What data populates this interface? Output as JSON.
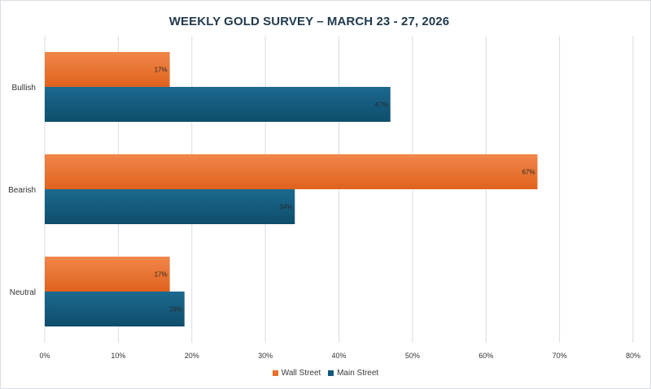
{
  "chart_data": {
    "type": "bar",
    "orientation": "horizontal",
    "title": "WEEKLY GOLD SURVEY – MARCH 23 - 27, 2026",
    "categories": [
      "Bullish",
      "Bearish",
      "Neutral"
    ],
    "series": [
      {
        "name": "Wall Street",
        "color": "#e8702a",
        "values": [
          17,
          67,
          17
        ],
        "labels": [
          "17%",
          "67%",
          "17%"
        ]
      },
      {
        "name": "Main Street",
        "color": "#14597b",
        "values": [
          47,
          34,
          19
        ],
        "labels": [
          "47%",
          "34%",
          "19%"
        ]
      }
    ],
    "xlim": [
      0,
      80
    ],
    "xticks": [
      0,
      10,
      20,
      30,
      40,
      50,
      60,
      70,
      80
    ],
    "xtick_labels": [
      "0%",
      "10%",
      "20%",
      "30%",
      "40%",
      "50%",
      "60%",
      "70%",
      "80%"
    ],
    "xlabel": "",
    "ylabel": "",
    "grid": true,
    "legend_position": "bottom"
  }
}
